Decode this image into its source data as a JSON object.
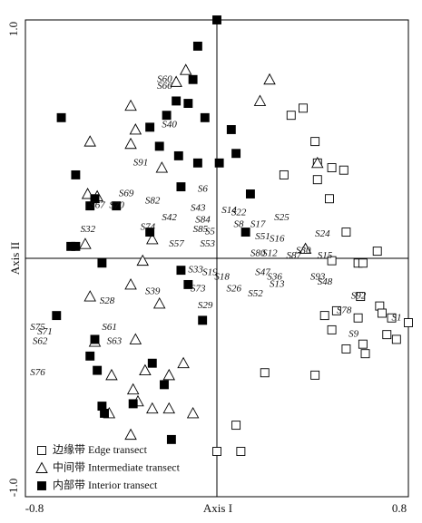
{
  "chart_data": {
    "type": "scatter",
    "xlabel": "Axis I",
    "ylabel": "Axis II",
    "xlim": [
      -0.8,
      0.8
    ],
    "ylim": [
      -1.0,
      1.0
    ],
    "xticks": [
      -0.8,
      0.8
    ],
    "yticks": [
      {
        "value": -1.0,
        "label": "-1.0"
      },
      {
        "value": 1.0,
        "label": "1.0"
      }
    ],
    "axes_through_origin": true,
    "series": [
      {
        "name": "边缘带 Edge transect",
        "marker": "open-square",
        "color": "#000000",
        "x": [
          0.31,
          0.36,
          0.41,
          0.28,
          0.42,
          0.48,
          0.53,
          0.42,
          0.47,
          0.54,
          0.67,
          0.48,
          0.59,
          0.61,
          0.68,
          0.6,
          0.45,
          0.5,
          0.59,
          0.69,
          0.73,
          0.8,
          0.75,
          0.71,
          0.48,
          0.54,
          0.61,
          0.62,
          0.2,
          0.41,
          0.08,
          0.0,
          0.1
        ],
        "y": [
          0.6,
          0.63,
          0.49,
          0.35,
          0.4,
          0.38,
          0.37,
          0.33,
          0.25,
          0.11,
          0.03,
          -0.01,
          -0.02,
          -0.02,
          -0.2,
          -0.16,
          -0.24,
          -0.22,
          -0.25,
          -0.23,
          -0.25,
          -0.27,
          -0.34,
          -0.32,
          -0.3,
          -0.38,
          -0.36,
          -0.4,
          -0.48,
          -0.49,
          -0.7,
          -0.81,
          -0.81
        ]
      },
      {
        "name": "中间带 Intermediate transect",
        "marker": "open-triangle",
        "color": "#000000",
        "x": [
          -0.13,
          0.22,
          0.18,
          -0.17,
          -0.36,
          -0.53,
          -0.36,
          -0.34,
          -0.23,
          0.42,
          -0.54,
          -0.5,
          -0.27,
          -0.55,
          -0.31,
          -0.53,
          -0.36,
          -0.24,
          -0.51,
          -0.34,
          -0.14,
          -0.2,
          -0.3,
          -0.44,
          -0.35,
          -0.33,
          -0.27,
          -0.2,
          -0.45,
          -0.36,
          -0.1,
          0.37
        ],
        "y": [
          0.79,
          0.75,
          0.66,
          0.74,
          0.64,
          0.49,
          0.48,
          0.54,
          0.38,
          0.4,
          0.27,
          0.26,
          0.08,
          0.06,
          -0.01,
          -0.16,
          -0.11,
          -0.19,
          -0.35,
          -0.34,
          -0.44,
          -0.49,
          -0.47,
          -0.49,
          -0.55,
          -0.6,
          -0.63,
          -0.63,
          -0.65,
          -0.74,
          -0.65,
          0.04
        ]
      },
      {
        "name": "内部带 Interior transect",
        "marker": "filled-square",
        "color": "#000000",
        "x": [
          0.0,
          -0.08,
          -0.65,
          -0.1,
          -0.21,
          -0.17,
          -0.12,
          -0.28,
          -0.05,
          0.06,
          -0.24,
          -0.16,
          0.08,
          -0.08,
          0.01,
          -0.59,
          -0.15,
          0.14,
          -0.51,
          -0.53,
          -0.42,
          -0.28,
          0.12,
          -0.61,
          -0.59,
          -0.48,
          -0.15,
          -0.12,
          -0.06,
          -0.67,
          -0.53,
          -0.5,
          -0.51,
          -0.27,
          -0.22,
          -0.48,
          -0.47,
          -0.35,
          -0.19
        ],
        "y": [
          1.0,
          0.89,
          0.59,
          0.75,
          0.6,
          0.66,
          0.65,
          0.55,
          0.59,
          0.54,
          0.47,
          0.43,
          0.44,
          0.4,
          0.4,
          0.35,
          0.3,
          0.27,
          0.25,
          0.22,
          0.22,
          0.11,
          0.11,
          0.05,
          0.05,
          -0.02,
          -0.05,
          -0.11,
          -0.26,
          -0.24,
          -0.41,
          -0.47,
          -0.34,
          -0.44,
          -0.53,
          -0.62,
          -0.65,
          -0.61,
          -0.76
        ]
      }
    ],
    "annotations": [
      {
        "text": "S60",
        "x": -0.25,
        "y": 0.75
      },
      {
        "text": "S66",
        "x": -0.25,
        "y": 0.72
      },
      {
        "text": "S40",
        "x": -0.23,
        "y": 0.56
      },
      {
        "text": "S91",
        "x": -0.35,
        "y": 0.4
      },
      {
        "text": "S6",
        "x": -0.08,
        "y": 0.29
      },
      {
        "text": "S69",
        "x": -0.41,
        "y": 0.27
      },
      {
        "text": "S67",
        "x": -0.53,
        "y": 0.22
      },
      {
        "text": "S70",
        "x": -0.45,
        "y": 0.22
      },
      {
        "text": "S82",
        "x": -0.3,
        "y": 0.24
      },
      {
        "text": "S43",
        "x": -0.11,
        "y": 0.21
      },
      {
        "text": "S14",
        "x": 0.02,
        "y": 0.2
      },
      {
        "text": "S22",
        "x": 0.06,
        "y": 0.19
      },
      {
        "text": "S25",
        "x": 0.24,
        "y": 0.17
      },
      {
        "text": "S42",
        "x": -0.23,
        "y": 0.17
      },
      {
        "text": "S84",
        "x": -0.09,
        "y": 0.16
      },
      {
        "text": "S8",
        "x": 0.07,
        "y": 0.14
      },
      {
        "text": "S17",
        "x": 0.14,
        "y": 0.14
      },
      {
        "text": "S24",
        "x": 0.41,
        "y": 0.1
      },
      {
        "text": "S32",
        "x": -0.57,
        "y": 0.12
      },
      {
        "text": "S74",
        "x": -0.32,
        "y": 0.13
      },
      {
        "text": "S85",
        "x": -0.1,
        "y": 0.12
      },
      {
        "text": "S5",
        "x": -0.05,
        "y": 0.11
      },
      {
        "text": "S51",
        "x": 0.16,
        "y": 0.09
      },
      {
        "text": "S16",
        "x": 0.22,
        "y": 0.08
      },
      {
        "text": "S53",
        "x": -0.07,
        "y": 0.06
      },
      {
        "text": "S57",
        "x": -0.2,
        "y": 0.06
      },
      {
        "text": "S80",
        "x": 0.14,
        "y": 0.02
      },
      {
        "text": "S12",
        "x": 0.19,
        "y": 0.02
      },
      {
        "text": "S30",
        "x": 0.33,
        "y": 0.03
      },
      {
        "text": "S87",
        "x": 0.29,
        "y": 0.01
      },
      {
        "text": "S15",
        "x": 0.42,
        "y": 0.01
      },
      {
        "text": "S33",
        "x": -0.12,
        "y": -0.05
      },
      {
        "text": "S19",
        "x": -0.06,
        "y": -0.06
      },
      {
        "text": "S18",
        "x": -0.01,
        "y": -0.08
      },
      {
        "text": "S47",
        "x": 0.16,
        "y": -0.06
      },
      {
        "text": "S36",
        "x": 0.21,
        "y": -0.08
      },
      {
        "text": "S13",
        "x": 0.22,
        "y": -0.11
      },
      {
        "text": "S26",
        "x": 0.04,
        "y": -0.13
      },
      {
        "text": "S93",
        "x": 0.39,
        "y": -0.08
      },
      {
        "text": "S48",
        "x": 0.42,
        "y": -0.1
      },
      {
        "text": "S73",
        "x": -0.11,
        "y": -0.13
      },
      {
        "text": "S52",
        "x": 0.13,
        "y": -0.15
      },
      {
        "text": "S39",
        "x": -0.3,
        "y": -0.14
      },
      {
        "text": "S28",
        "x": -0.49,
        "y": -0.18
      },
      {
        "text": "S29",
        "x": -0.08,
        "y": -0.2
      },
      {
        "text": "S92",
        "x": 0.56,
        "y": -0.16
      },
      {
        "text": "S78",
        "x": 0.5,
        "y": -0.22
      },
      {
        "text": "S75",
        "x": -0.78,
        "y": -0.29
      },
      {
        "text": "S71",
        "x": -0.75,
        "y": -0.31
      },
      {
        "text": "S62",
        "x": -0.77,
        "y": -0.35
      },
      {
        "text": "S61",
        "x": -0.48,
        "y": -0.29
      },
      {
        "text": "S63",
        "x": -0.46,
        "y": -0.35
      },
      {
        "text": "S76",
        "x": -0.78,
        "y": -0.48
      },
      {
        "text": "S9",
        "x": 0.55,
        "y": -0.32
      },
      {
        "text": "S1",
        "x": 0.73,
        "y": -0.25
      }
    ]
  }
}
